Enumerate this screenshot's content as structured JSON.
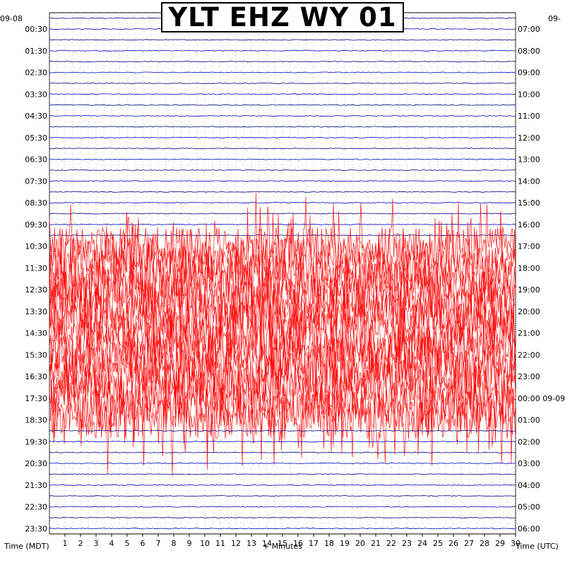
{
  "chart_data": {
    "type": "line",
    "title": "YLT EHZ WY 01",
    "start_date_left": "09-08",
    "start_date_right": "09-",
    "xlabel": "+ Minutes",
    "left_axis_label": "Time (MDT)",
    "right_axis_label": "Time (UTC)",
    "xlim": [
      0,
      30
    ],
    "x_ticks": [
      1,
      2,
      3,
      4,
      5,
      6,
      7,
      8,
      9,
      10,
      11,
      12,
      13,
      14,
      15,
      16,
      17,
      18,
      19,
      20,
      21,
      22,
      23,
      24,
      25,
      26,
      27,
      28,
      29,
      30
    ],
    "rows_per_hour": 2,
    "row_minutes": 30,
    "row_colors": [
      "#000000",
      "#ff0000",
      "#0000ff",
      "#008000"
    ],
    "trace_color_order": [
      "#000000",
      "#ff0000",
      "#0000ff",
      "#008000"
    ],
    "grid": true,
    "left_ticks": [
      "00:30",
      "01:30",
      "02:30",
      "03:30",
      "04:30",
      "05:30",
      "06:30",
      "07:30",
      "08:30",
      "09:30",
      "10:30",
      "11:30",
      "12:30",
      "13:30",
      "14:30",
      "15:30",
      "16:30",
      "17:30",
      "18:30",
      "19:30",
      "20:30",
      "21:30",
      "22:30",
      "23:30"
    ],
    "right_ticks": [
      "07:00",
      "08:00",
      "09:00",
      "10:00",
      "11:00",
      "12:00",
      "13:00",
      "14:00",
      "15:00",
      "16:00",
      "17:00",
      "18:00",
      "19:00",
      "20:00",
      "21:00",
      "22:00",
      "23:00",
      "00:00 09-09",
      "01:00",
      "02:00",
      "03:00",
      "04:00",
      "05:00",
      "06:00"
    ],
    "annotations": {
      "quiet_rows": "rows 0–9 and 38–47 show low-amplitude noise",
      "noisy_interval": "large-amplitude signal ~10:30–18:30 MDT"
    }
  }
}
